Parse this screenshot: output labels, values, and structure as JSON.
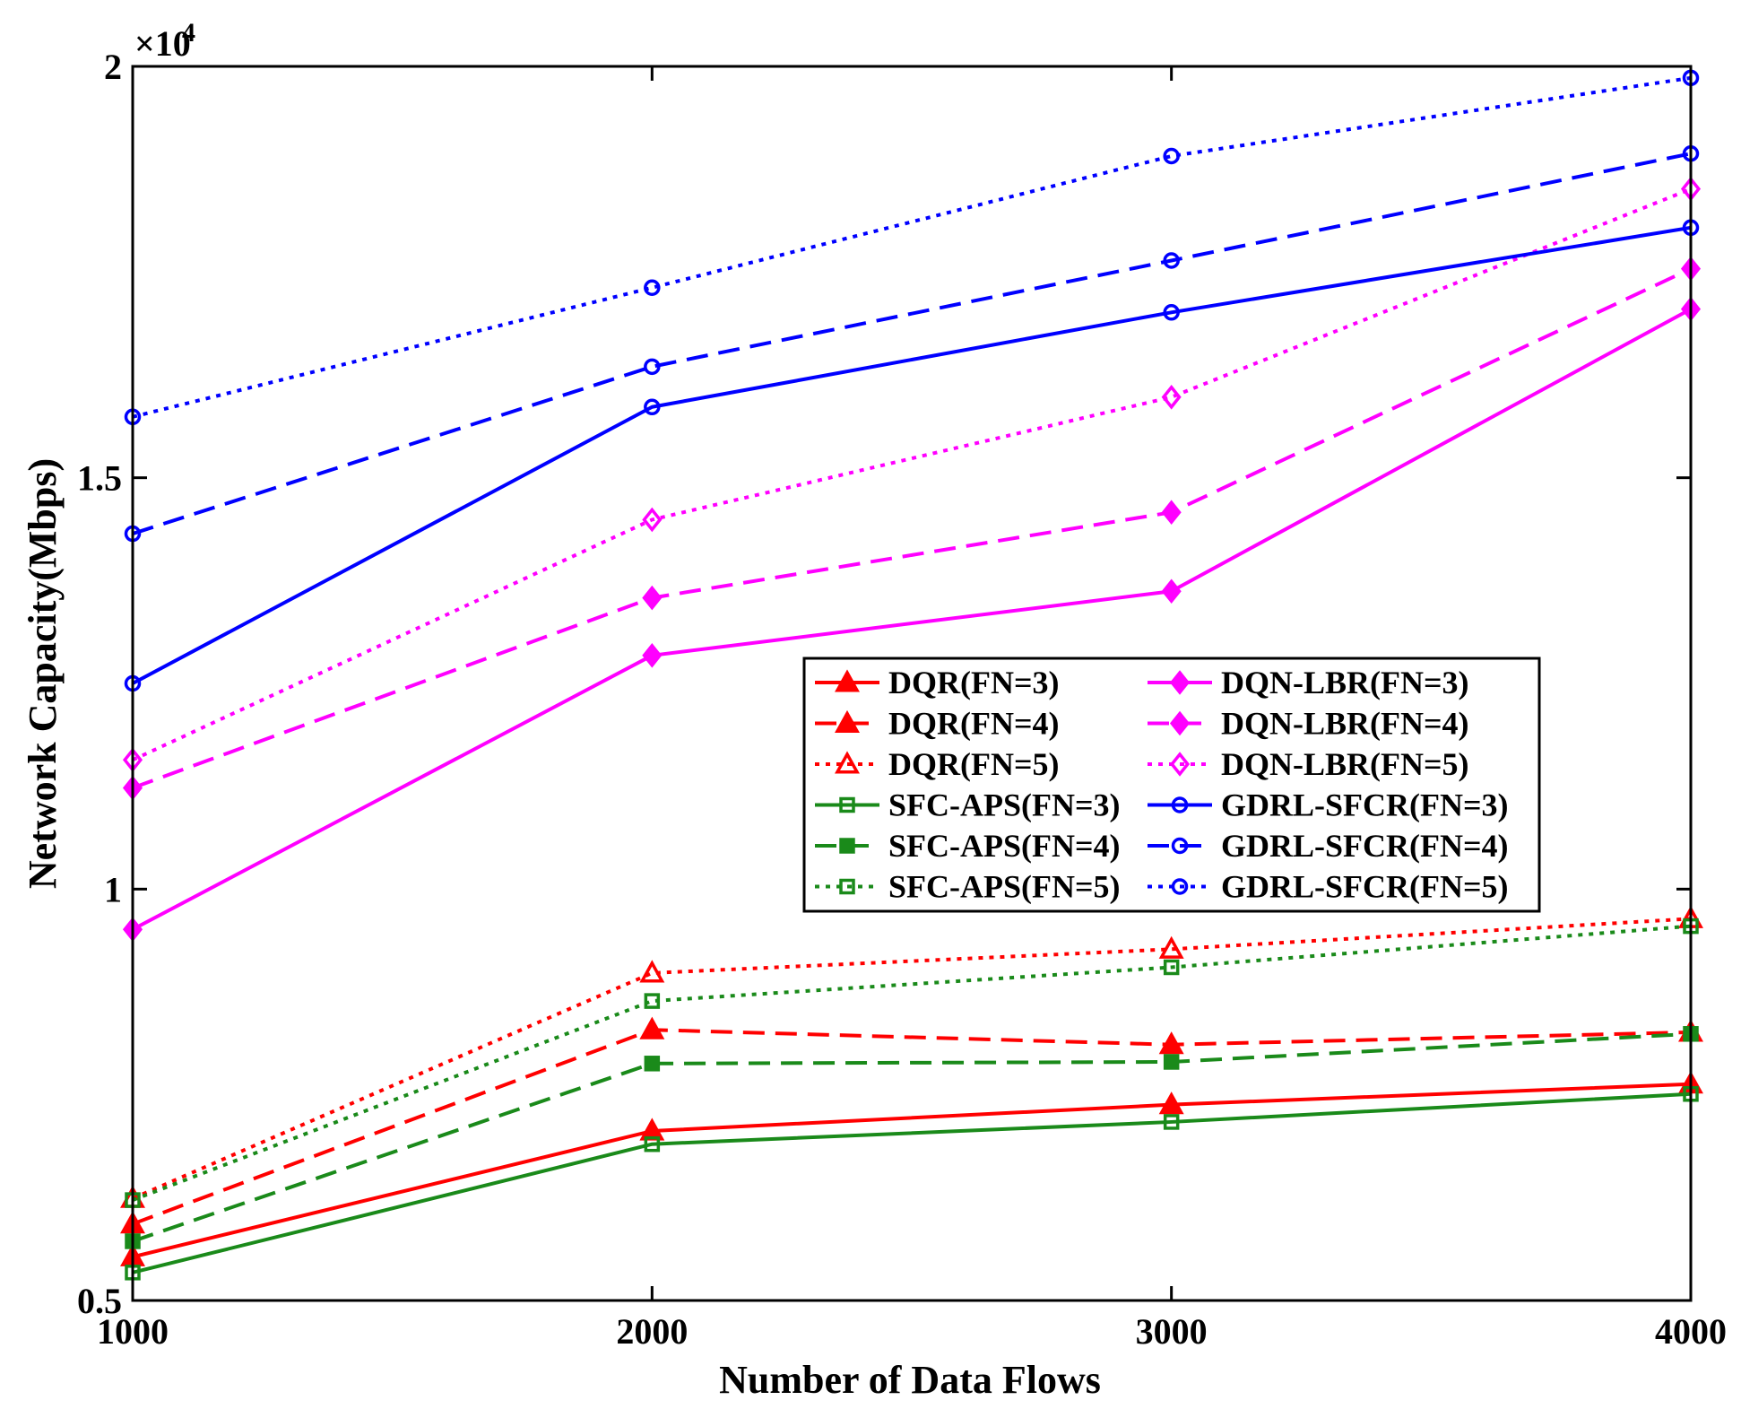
{
  "chart_data": {
    "type": "line",
    "title": "",
    "xlabel": "Number of Data Flows",
    "ylabel": "Network Capacity(Mbps)",
    "y_exponent_label": "×10",
    "y_exponent_power": "4",
    "x": [
      1000,
      2000,
      3000,
      4000
    ],
    "xlim": [
      1000,
      4000
    ],
    "ylim": [
      0.5,
      2.0
    ],
    "x_ticks": [
      1000,
      2000,
      3000,
      4000
    ],
    "x_tick_labels": [
      "1000",
      "2000",
      "3000",
      "4000"
    ],
    "y_ticks": [
      0.5,
      1.0,
      1.5,
      2.0
    ],
    "y_tick_labels": [
      "0.5",
      "1",
      "1.5",
      "2"
    ],
    "grid": false,
    "legend_position": "center-right",
    "series": [
      {
        "name": "DQR(FN=3)",
        "values": [
          0.553,
          0.706,
          0.738,
          0.763
        ],
        "color": "#ff0000",
        "dash": "solid",
        "marker": "triangle",
        "filled": true
      },
      {
        "name": "DQR(FN=4)",
        "values": [
          0.593,
          0.829,
          0.811,
          0.826
        ],
        "color": "#ff0000",
        "dash": "dashed",
        "marker": "triangle",
        "filled": true
      },
      {
        "name": "DQR(FN=5)",
        "values": [
          0.624,
          0.898,
          0.927,
          0.964
        ],
        "color": "#ff0000",
        "dash": "dotted",
        "marker": "triangle",
        "filled": false
      },
      {
        "name": "SFC-APS(FN=3)",
        "values": [
          0.534,
          0.69,
          0.717,
          0.751
        ],
        "color": "#1a8a1a",
        "dash": "solid",
        "marker": "square",
        "filled": false
      },
      {
        "name": "SFC-APS(FN=4)",
        "values": [
          0.572,
          0.788,
          0.79,
          0.824
        ],
        "color": "#1a8a1a",
        "dash": "dashed",
        "marker": "square",
        "filled": true
      },
      {
        "name": "SFC-APS(FN=5)",
        "values": [
          0.622,
          0.864,
          0.905,
          0.955
        ],
        "color": "#1a8a1a",
        "dash": "dotted",
        "marker": "square",
        "filled": false
      },
      {
        "name": "DQN-LBR(FN=3)",
        "values": [
          0.951,
          1.284,
          1.362,
          1.705
        ],
        "color": "#ff00ff",
        "dash": "solid",
        "marker": "diamond",
        "filled": true
      },
      {
        "name": "DQN-LBR(FN=4)",
        "values": [
          1.123,
          1.354,
          1.458,
          1.754
        ],
        "color": "#ff00ff",
        "dash": "dashed",
        "marker": "diamond",
        "filled": true
      },
      {
        "name": "DQN-LBR(FN=5)",
        "values": [
          1.157,
          1.449,
          1.598,
          1.851
        ],
        "color": "#ff00ff",
        "dash": "dotted",
        "marker": "diamond",
        "filled": false
      },
      {
        "name": "GDRL-SFCR(FN=3)",
        "values": [
          1.25,
          1.586,
          1.701,
          1.804
        ],
        "color": "#0000ff",
        "dash": "solid",
        "marker": "circle",
        "filled": false
      },
      {
        "name": "GDRL-SFCR(FN=4)",
        "values": [
          1.432,
          1.635,
          1.764,
          1.894
        ],
        "color": "#0000ff",
        "dash": "dashed",
        "marker": "circle",
        "filled": false
      },
      {
        "name": "GDRL-SFCR(FN=5)",
        "values": [
          1.574,
          1.731,
          1.891,
          1.986
        ],
        "color": "#0000ff",
        "dash": "dotted",
        "marker": "circle",
        "filled": false
      }
    ]
  }
}
